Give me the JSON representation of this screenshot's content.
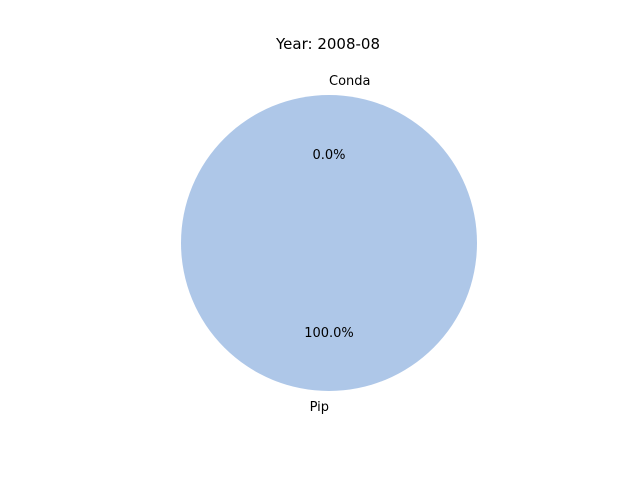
{
  "chart_data": {
    "type": "pie",
    "title": "Year: 2008-08",
    "slices": [
      {
        "label": "Conda",
        "value": 0.0,
        "pct_label": "0.0%",
        "color": "#aec7e8"
      },
      {
        "label": "Pip",
        "value": 100.0,
        "pct_label": "100.0%",
        "color": "#aec7e8"
      }
    ],
    "legend": "none"
  }
}
